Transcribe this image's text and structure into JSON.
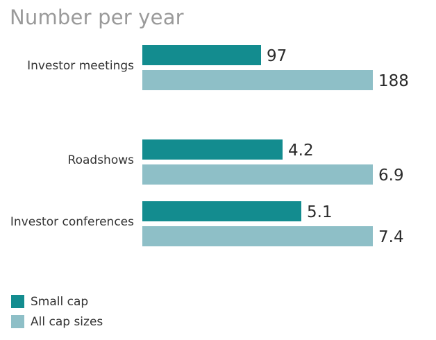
{
  "chart_data": {
    "type": "bar",
    "orientation": "horizontal",
    "title": "Number per year",
    "categories": [
      "Investor meetings",
      "Roadshows",
      "Investor conferences"
    ],
    "series": [
      {
        "name": "Small cap",
        "color": "#138c8f"
      },
      {
        "name": "All cap sizes",
        "color": "#8ebfc7"
      }
    ],
    "groups": [
      {
        "category": "Investor meetings",
        "values": [
          97,
          188
        ],
        "labels": [
          "97",
          "188"
        ],
        "xlim": [
          0,
          188
        ]
      },
      {
        "category": "Roadshows",
        "values": [
          4.2,
          6.9
        ],
        "labels": [
          "4.2",
          "6.9"
        ],
        "xlim": [
          0,
          6.9
        ]
      },
      {
        "category": "Investor conferences",
        "values": [
          5.1,
          7.4
        ],
        "labels": [
          "5.1",
          "7.4"
        ],
        "xlim": [
          0,
          7.4
        ]
      }
    ],
    "legend_position": "bottom-left",
    "grid": false
  }
}
